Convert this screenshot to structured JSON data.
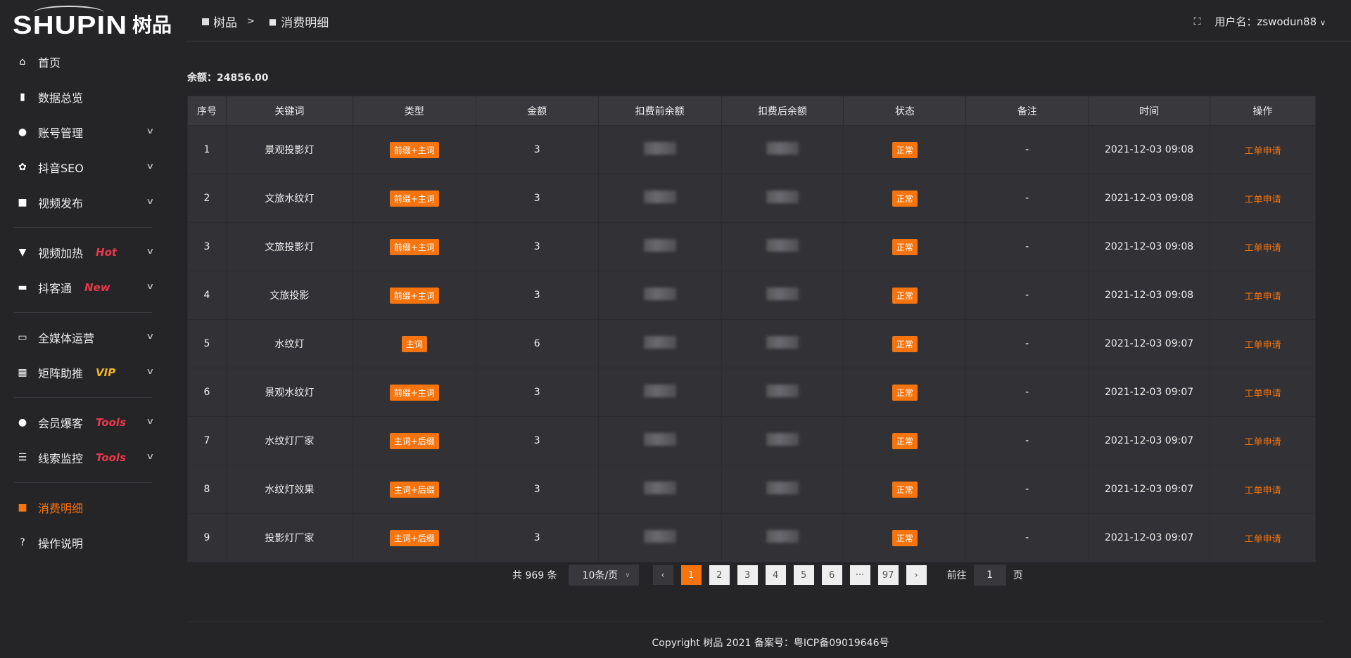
{
  "brand": {
    "logo_en": "SHUPIN",
    "logo_cn": "树品"
  },
  "colors": {
    "accent": "#f5740e",
    "hot": "#e8394a",
    "vip": "#f0b429",
    "background": "#252528"
  },
  "sidebar": {
    "items": [
      {
        "label": "首页",
        "icon": "home-icon"
      },
      {
        "label": "数据总览",
        "icon": "bar-chart-icon"
      },
      {
        "label": "账号管理",
        "icon": "user-icon",
        "expandable": true
      },
      {
        "label": "抖音SEO",
        "icon": "gear-icon",
        "expandable": true
      },
      {
        "label": "视频发布",
        "icon": "camera-icon",
        "expandable": true
      },
      {
        "label": "视频加热",
        "icon": "flag-icon",
        "badge": "Hot",
        "expandable": true
      },
      {
        "label": "抖客通",
        "icon": "chat-icon",
        "badge": "New",
        "expandable": true
      },
      {
        "label": "全媒体运营",
        "icon": "monitor-icon",
        "expandable": true
      },
      {
        "label": "矩阵助推",
        "icon": "grid-icon",
        "badge": "VIP",
        "expandable": true
      },
      {
        "label": "会员爆客",
        "icon": "user-icon",
        "badge": "Tools",
        "expandable": true
      },
      {
        "label": "线索监控",
        "icon": "sliders-icon",
        "badge": "Tools",
        "expandable": true
      },
      {
        "label": "消费明细",
        "icon": "wallet-icon",
        "active": true
      },
      {
        "label": "操作说明",
        "icon": "help-icon"
      }
    ]
  },
  "header": {
    "breadcrumb": [
      "树品",
      "消费明细"
    ],
    "separator": ">",
    "user_label": "用户名：zswodun88"
  },
  "balance": "余额：24856.00",
  "table": {
    "columns": [
      "序号",
      "关键词",
      "类型",
      "金额",
      "扣费前余额",
      "扣费后余额",
      "状态",
      "备注",
      "时间",
      "操作"
    ],
    "rows": [
      [
        "1",
        "景观投影灯",
        "前缀+主词",
        "3",
        "",
        "",
        "正常",
        "-",
        "2021-12-03 09:08",
        "工单申请"
      ],
      [
        "2",
        "文旅水纹灯",
        "前缀+主词",
        "3",
        "",
        "",
        "正常",
        "-",
        "2021-12-03 09:08",
        "工单申请"
      ],
      [
        "3",
        "文旅投影灯",
        "前缀+主词",
        "3",
        "",
        "",
        "正常",
        "-",
        "2021-12-03 09:08",
        "工单申请"
      ],
      [
        "4",
        "文旅投影",
        "前缀+主词",
        "3",
        "",
        "",
        "正常",
        "-",
        "2021-12-03 09:08",
        "工单申请"
      ],
      [
        "5",
        "水纹灯",
        "主词",
        "6",
        "",
        "",
        "正常",
        "-",
        "2021-12-03 09:07",
        "工单申请"
      ],
      [
        "6",
        "景观水纹灯",
        "前缀+主词",
        "3",
        "",
        "",
        "正常",
        "-",
        "2021-12-03 09:07",
        "工单申请"
      ],
      [
        "7",
        "水纹灯厂家",
        "主词+后缀",
        "3",
        "",
        "",
        "正常",
        "-",
        "2021-12-03 09:07",
        "工单申请"
      ],
      [
        "8",
        "水纹灯效果",
        "主词+后缀",
        "3",
        "",
        "",
        "正常",
        "-",
        "2021-12-03 09:07",
        "工单申请"
      ],
      [
        "9",
        "投影灯厂家",
        "主词+后缀",
        "3",
        "",
        "",
        "正常",
        "-",
        "2021-12-03 09:07",
        "工单申请"
      ]
    ]
  },
  "pagination": {
    "total": "共 969 条",
    "page_size": "10条/页",
    "pages": [
      "1",
      "2",
      "3",
      "4",
      "5",
      "6",
      "···",
      "97"
    ],
    "current": "1",
    "goto_label": "前往",
    "goto_value": "1",
    "page_suffix": "页"
  },
  "footer": "Copyright 树品 2021 备案号：粤ICP备09019646号"
}
